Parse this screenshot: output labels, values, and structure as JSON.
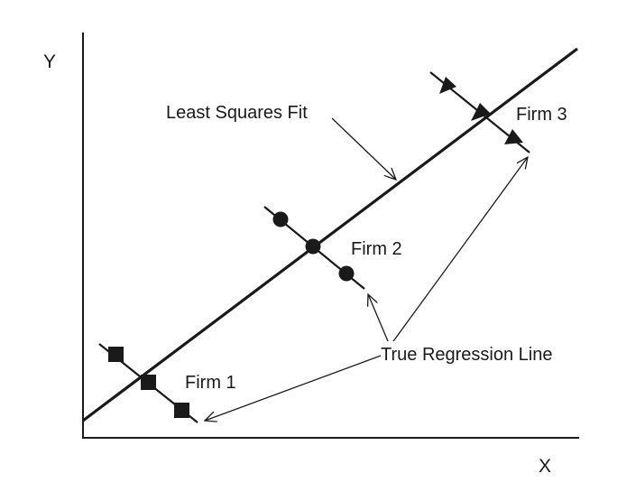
{
  "figure": {
    "axis_labels": {
      "y": "Y",
      "x": "X"
    },
    "annotations": {
      "least_squares": "Least Squares Fit",
      "true_regression": "True Regression Line"
    },
    "firms": [
      {
        "label": "Firm 1",
        "marker": "square"
      },
      {
        "label": "Firm 2",
        "marker": "circle"
      },
      {
        "label": "Firm 3",
        "marker": "triangle"
      }
    ],
    "colors": {
      "ink": "#1a1a1a",
      "background": "#ffffff"
    }
  }
}
